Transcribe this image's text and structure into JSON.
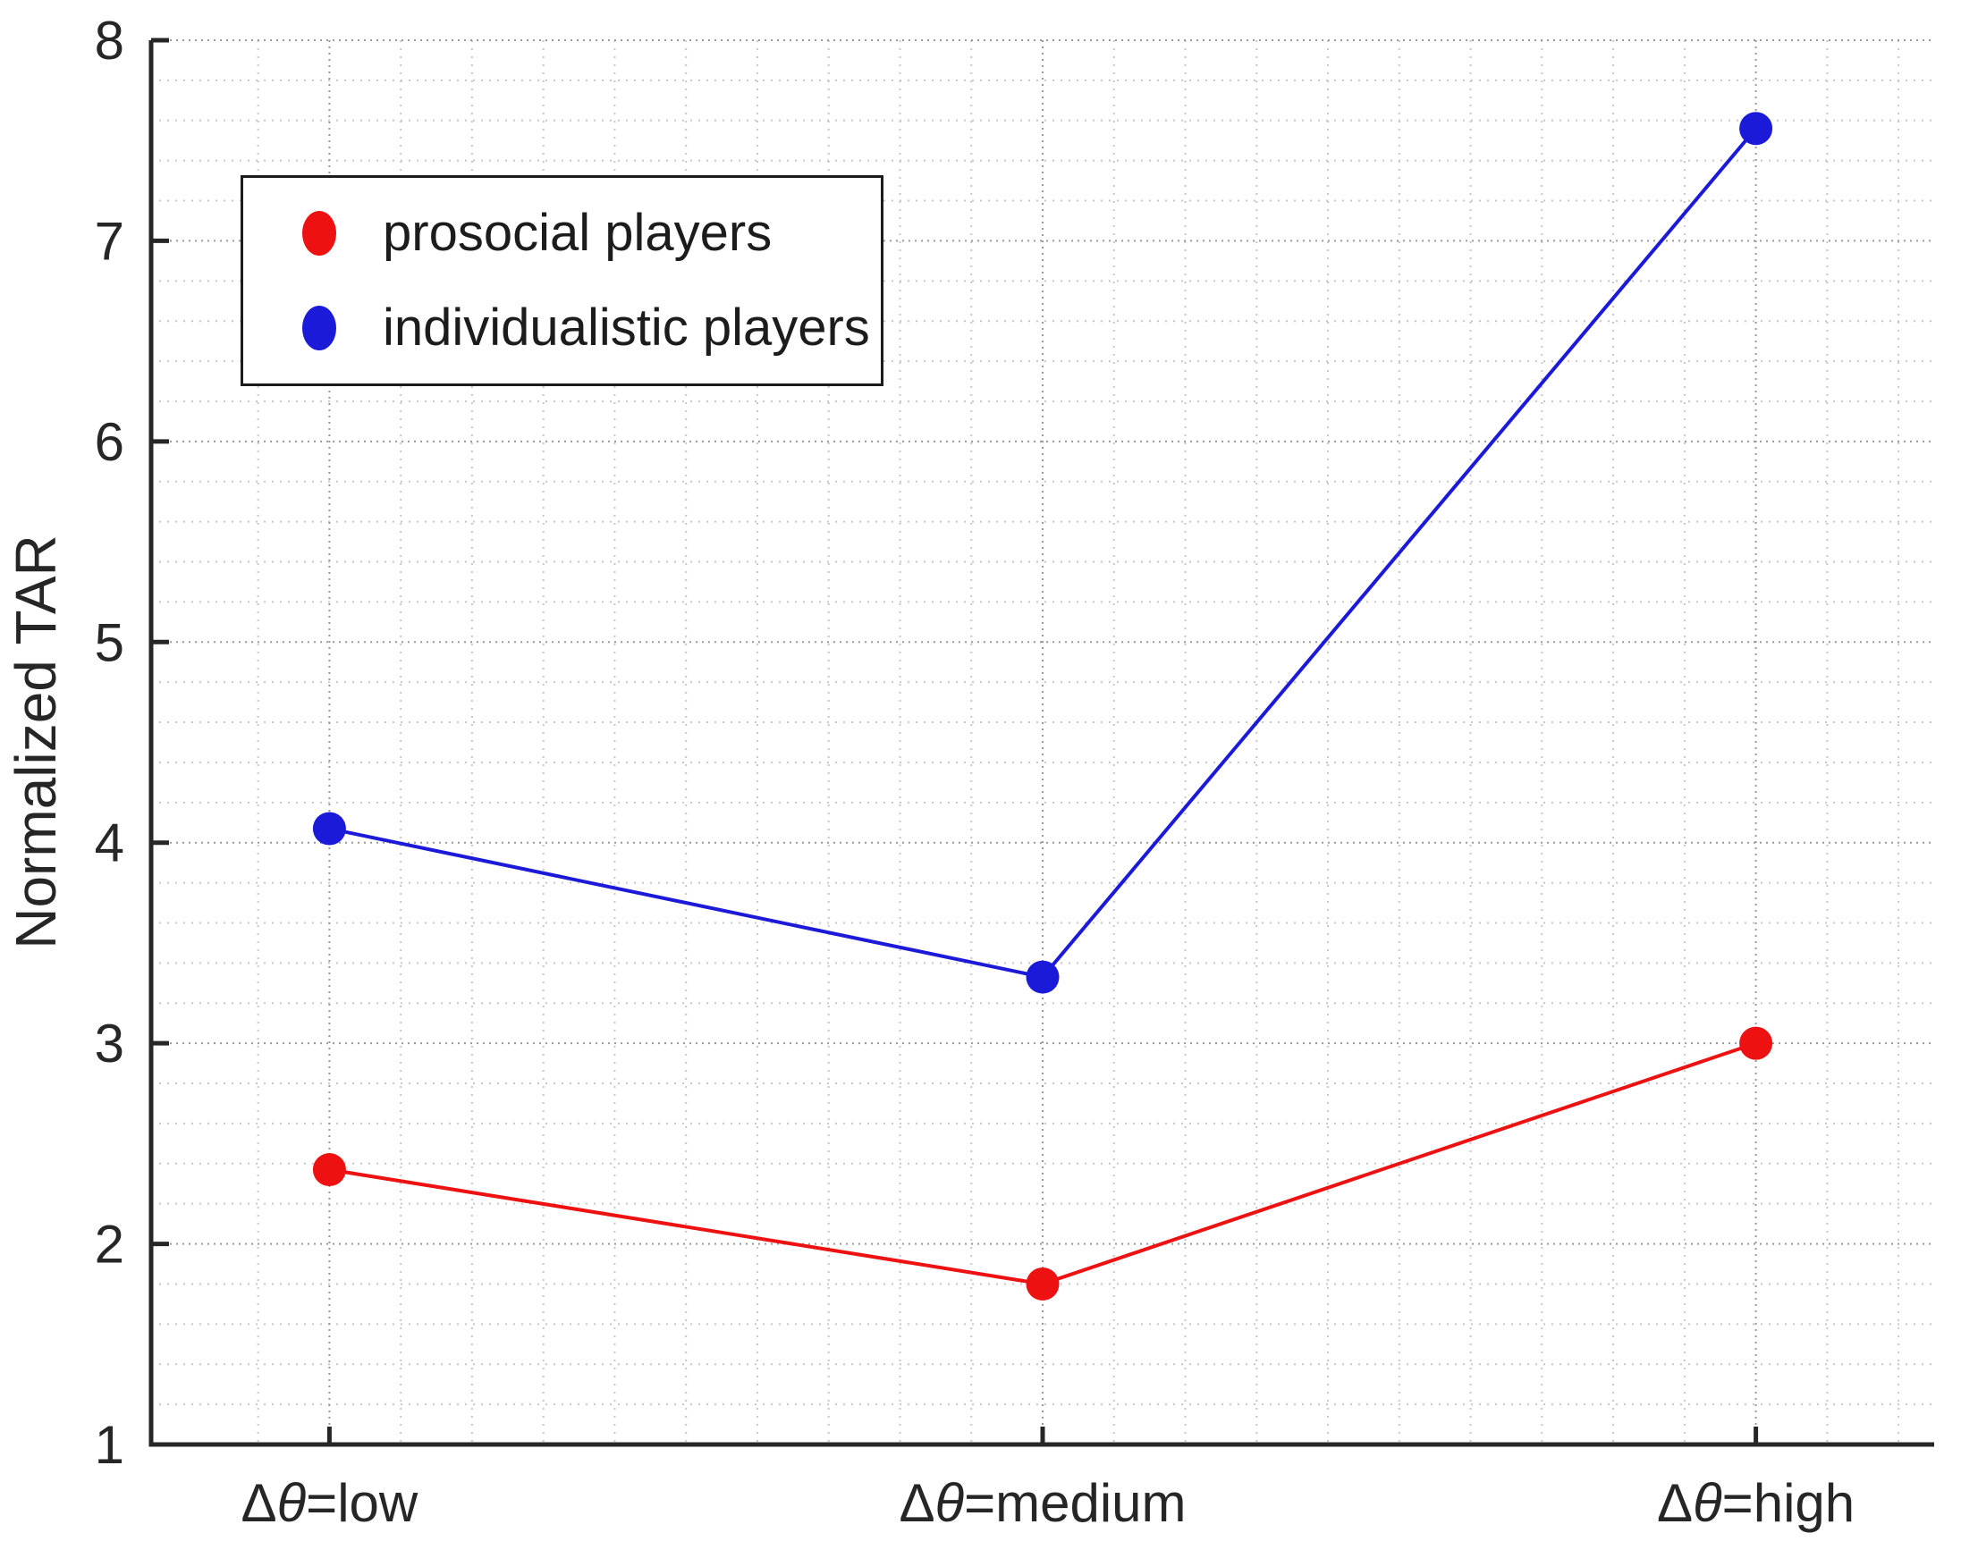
{
  "figure": {
    "background": "#ffffff"
  },
  "chart_data": {
    "type": "line",
    "title": "",
    "xlabel": "",
    "ylabel": "Normalized TAR",
    "categories": [
      "Δθ=low",
      "Δθ=medium",
      "Δθ=high"
    ],
    "x": [
      1,
      2,
      3
    ],
    "xlim": [
      0.75,
      3.25
    ],
    "ylim": [
      1,
      8
    ],
    "yticks": [
      1,
      2,
      3,
      4,
      5,
      6,
      7,
      8
    ],
    "grid": {
      "major": true,
      "minor": true,
      "style": "dotted",
      "minor_x_step": 0.1,
      "minor_y_step": 0.2
    },
    "legend": {
      "position": "top-left",
      "border": true
    },
    "series": [
      {
        "name": "prosocial players",
        "color": "#ee1111",
        "values": [
          2.37,
          1.8,
          3.0
        ]
      },
      {
        "name": "individualistic players",
        "color": "#1a1ad8",
        "values": [
          4.07,
          3.33,
          7.56
        ]
      }
    ],
    "colors": {
      "axis": "#262626",
      "tick_label": "#262626",
      "major_grid": "#999999",
      "minor_grid": "#c7c7c7"
    }
  }
}
